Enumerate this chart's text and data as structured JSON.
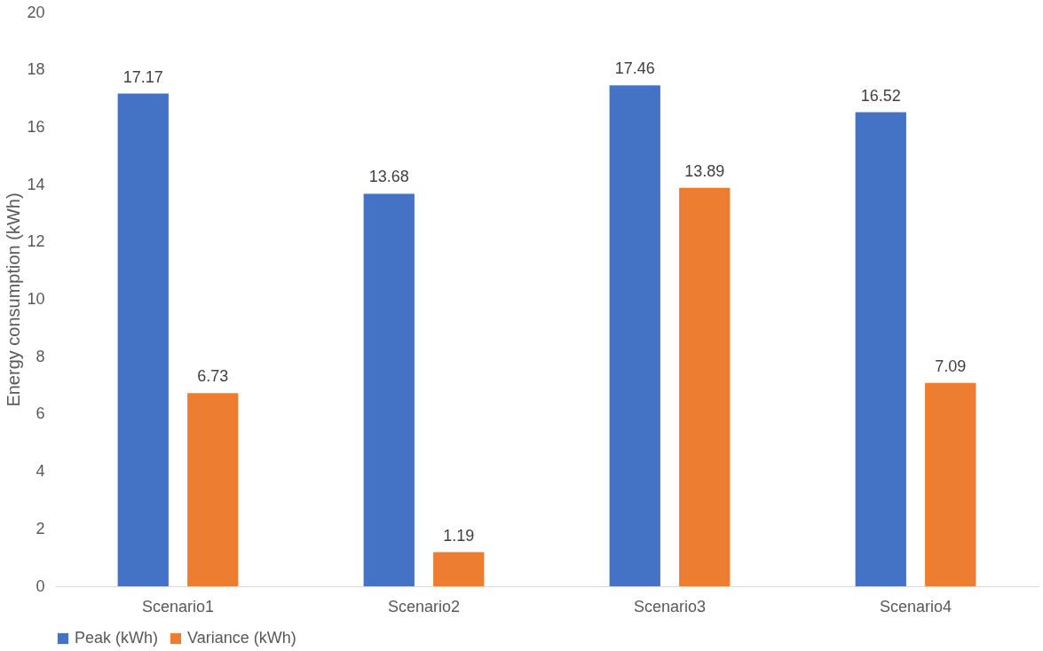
{
  "chart_data": {
    "type": "bar",
    "ylabel": "Energy consumption (kWh)",
    "categories": [
      "Scenario1",
      "Scenario2",
      "Scenario3",
      "Scenario4"
    ],
    "series": [
      {
        "name": "Peak (kWh)",
        "color": "#4472c4",
        "values": [
          17.17,
          13.68,
          17.46,
          16.52
        ]
      },
      {
        "name": "Variance (kWh)",
        "color": "#ed7d31",
        "values": [
          6.73,
          1.19,
          13.89,
          7.09
        ]
      }
    ],
    "ylim": [
      0,
      20
    ],
    "yticks": [
      0,
      2,
      4,
      6,
      8,
      10,
      12,
      14,
      16,
      18,
      20
    ],
    "grid": false,
    "legend": "bottom",
    "data_labels": true
  }
}
